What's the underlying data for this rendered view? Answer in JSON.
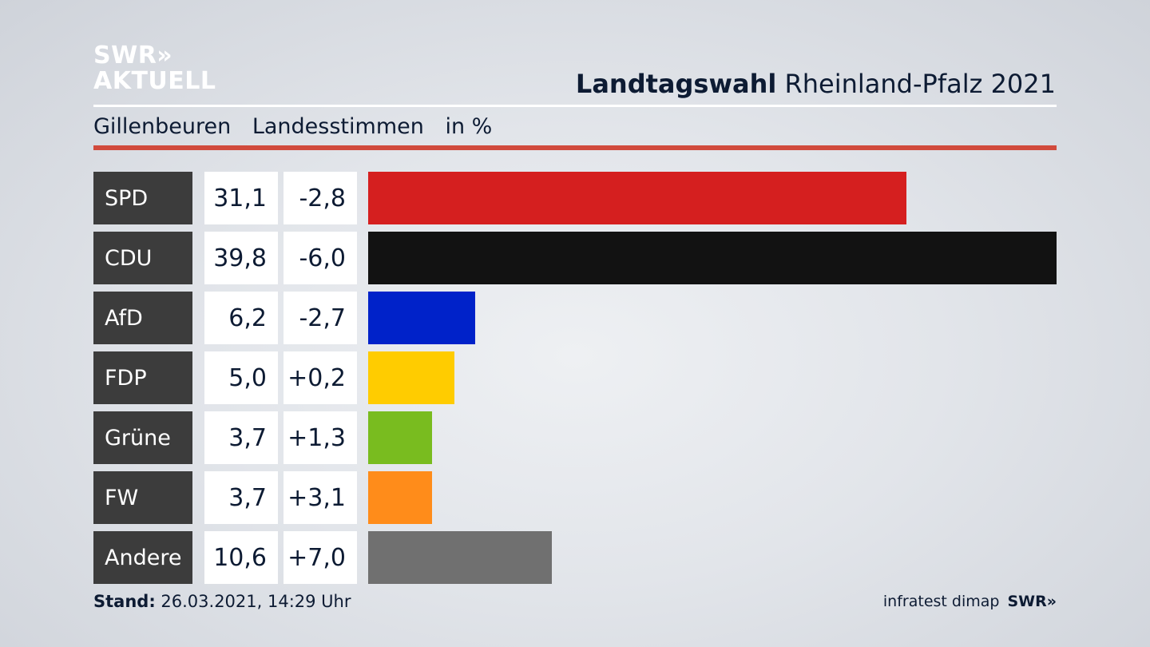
{
  "logo": {
    "line1": "SWR»",
    "line2": "AKTUELL"
  },
  "header": {
    "title_bold": "Landtagswahl",
    "title_rest": " Rheinland-Pfalz 2021"
  },
  "subtitle": {
    "place": "Gillenbeuren",
    "measure": "Landesstimmen",
    "unit": "in %"
  },
  "footer": {
    "stand_label": "Stand:",
    "stand_value": " 26.03.2021, 14:29 Uhr",
    "source": "infratest dimap",
    "brand": "SWR»"
  },
  "chart_data": {
    "type": "bar",
    "categories": [
      "SPD",
      "CDU",
      "AfD",
      "FDP",
      "Grüne",
      "FW",
      "Andere"
    ],
    "values": [
      31.1,
      39.8,
      6.2,
      5.0,
      3.7,
      3.7,
      10.6
    ],
    "value_labels": [
      "31,1",
      "39,8",
      "6,2",
      "5,0",
      "3,7",
      "3,7",
      "10,6"
    ],
    "diff_labels": [
      "-2,8",
      "-6,0",
      "-2,7",
      "+0,2",
      "+1,3",
      "+3,1",
      "+7,0"
    ],
    "colors": [
      "#d51f1f",
      "#121212",
      "#0022c9",
      "#ffcc00",
      "#79bc1f",
      "#ff8c1a",
      "#707070"
    ],
    "xlim": [
      0,
      39.8
    ]
  }
}
